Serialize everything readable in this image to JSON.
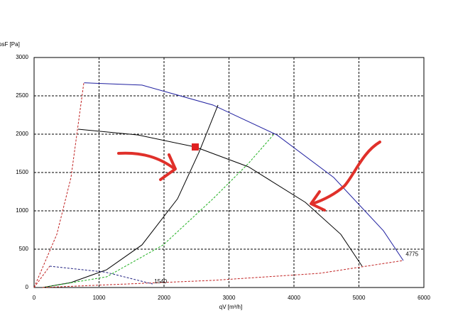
{
  "chart_data": {
    "type": "line",
    "ylabel": "psF [Pa]",
    "xlabel": "qV [m³/h]",
    "xlim": [
      0,
      6000
    ],
    "ylim": [
      0,
      3000
    ],
    "xticks": [
      0,
      1000,
      2000,
      3000,
      4000,
      5000,
      6000
    ],
    "yticks": [
      0,
      500,
      1000,
      1500,
      2000,
      2500,
      3000
    ],
    "grid": true,
    "series": [
      {
        "color": "#2020a0",
        "dash": false,
        "x": [
          770,
          1661,
          2754,
          3738,
          4612,
          5377,
          5683
        ],
        "values": [
          2670,
          2640,
          2380,
          1990,
          1435,
          740,
          352
        ]
      },
      {
        "color": "#000000",
        "dash": false,
        "x": [
          678,
          1600,
          2481,
          3300,
          4175,
          4721,
          5049
        ],
        "values": [
          2065,
          1990,
          1833,
          1574,
          1111,
          694,
          278
        ]
      },
      {
        "color": "#000000",
        "dash": false,
        "x": [
          131,
          568,
          1115,
          1661,
          2208,
          2536,
          2831
        ],
        "values": [
          0,
          65,
          231,
          556,
          1157,
          1759,
          2380
        ]
      },
      {
        "color": "#20b020",
        "dash": true,
        "x": [
          131,
          1115,
          1989,
          2754,
          3301,
          3683
        ],
        "values": [
          0,
          139,
          556,
          1157,
          1620,
          1991
        ]
      },
      {
        "color": "#c02020",
        "dash": true,
        "x": [
          0,
          350,
          568,
          765
        ],
        "values": [
          0,
          694,
          1435,
          2667
        ]
      },
      {
        "color": "#c02020",
        "dash": true,
        "x": [
          131,
          2754,
          4393,
          5683
        ],
        "values": [
          0,
          93,
          185,
          352
        ]
      },
      {
        "color": "#c02020",
        "dash": true,
        "x": [
          0,
          240
        ],
        "values": [
          0,
          278
        ]
      },
      {
        "color": "#202080",
        "dash": true,
        "x": [
          240,
          1100,
          1825
        ],
        "values": [
          278,
          200,
          46
        ]
      }
    ],
    "point": {
      "x": 2481,
      "y": 1833,
      "color": "#e02020"
    },
    "annotations": [
      {
        "text": "4775",
        "x": 5720,
        "y": 430
      },
      {
        "text": "1540",
        "x": 1850,
        "y": 75
      }
    ]
  }
}
